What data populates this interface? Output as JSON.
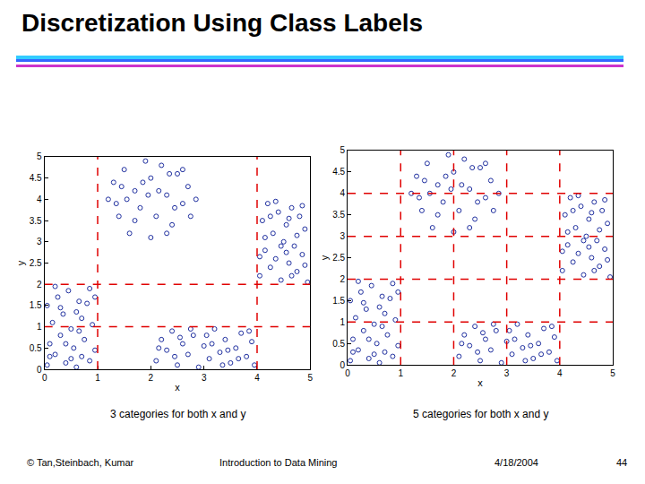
{
  "slide": {
    "title": "Discretization Using Class Labels",
    "footer": [
      "© Tan,Steinbach, Kumar",
      "Introduction to Data Mining",
      "4/18/2004",
      "44"
    ]
  },
  "chart_data": [
    {
      "type": "scatter",
      "title": "3 categories for both x and y",
      "x_label": "x",
      "y_label": "y",
      "xlim": [
        0,
        5
      ],
      "ylim": [
        0,
        5
      ],
      "xticks": [
        0,
        1,
        2,
        3,
        4,
        5
      ],
      "yticks": [
        0,
        0.5,
        1,
        1.5,
        2,
        2.5,
        3,
        3.5,
        4,
        4.5,
        5
      ],
      "marker": "circle-open",
      "color": "#1f2f9f",
      "x_cuts": [
        1,
        4
      ],
      "y_cuts": [
        1,
        2
      ],
      "x": [
        0.05,
        0.2,
        0.4,
        0.6,
        0.85,
        0.1,
        0.3,
        0.55,
        0.75,
        0.95,
        0.15,
        0.35,
        0.5,
        0.7,
        0.9,
        0.05,
        0.25,
        0.45,
        0.65,
        0.85,
        0.2,
        0.6,
        0.8,
        0.1,
        0.4,
        0.7,
        0.3,
        0.95,
        0.5,
        0.65,
        1.2,
        1.3,
        1.4,
        1.5,
        1.6,
        1.7,
        1.8,
        1.9,
        2.0,
        2.0,
        2.1,
        2.2,
        2.3,
        2.4,
        2.5,
        2.6,
        2.7,
        2.75,
        1.55,
        1.85,
        2.15,
        2.45,
        1.35,
        2.6,
        1.7,
        2.3,
        1.95,
        2.85,
        1.45,
        2.35,
        2.1,
        2.2,
        2.3,
        2.4,
        2.5,
        2.6,
        2.7,
        2.8,
        2.9,
        3.0,
        3.1,
        3.2,
        3.3,
        3.4,
        3.5,
        3.6,
        3.7,
        3.8,
        3.9,
        2.15,
        2.45,
        2.75,
        3.05,
        3.35,
        3.65,
        3.85,
        2.55,
        3.15,
        3.45,
        3.95,
        4.05,
        4.1,
        4.15,
        4.2,
        4.25,
        4.3,
        4.35,
        4.4,
        4.45,
        4.5,
        4.55,
        4.6,
        4.65,
        4.7,
        4.75,
        4.8,
        4.85,
        4.9,
        4.95,
        4.15,
        4.35,
        4.55,
        4.75,
        4.9,
        4.25,
        4.45,
        4.65,
        4.85,
        4.05,
        4.6
      ],
      "y": [
        0.1,
        0.35,
        0.15,
        0.05,
        0.2,
        0.6,
        0.8,
        0.5,
        0.7,
        0.45,
        1.1,
        1.3,
        0.95,
        1.2,
        1.05,
        1.5,
        1.7,
        1.85,
        1.6,
        1.9,
        1.95,
        1.35,
        1.55,
        0.3,
        0.6,
        0.3,
        1.45,
        1.7,
        0.25,
        0.9,
        4.0,
        4.4,
        3.6,
        4.7,
        3.2,
        4.2,
        3.8,
        4.9,
        3.1,
        4.5,
        3.6,
        4.8,
        4.1,
        3.4,
        4.6,
        3.9,
        4.3,
        3.6,
        4.0,
        4.4,
        4.2,
        3.8,
        3.9,
        4.7,
        3.5,
        3.2,
        4.1,
        4.0,
        4.3,
        4.6,
        0.2,
        0.7,
        0.45,
        0.9,
        0.1,
        0.6,
        0.35,
        0.8,
        0.05,
        0.55,
        0.25,
        0.95,
        0.4,
        0.7,
        0.15,
        0.5,
        0.85,
        0.3,
        0.65,
        0.5,
        0.3,
        0.95,
        0.8,
        0.1,
        0.25,
        0.9,
        0.75,
        0.6,
        0.45,
        0.1,
        2.2,
        3.5,
        2.8,
        3.9,
        2.4,
        3.2,
        2.6,
        3.7,
        2.1,
        3.0,
        3.4,
        2.5,
        3.8,
        2.9,
        2.3,
        3.6,
        2.7,
        3.3,
        2.05,
        3.1,
        3.95,
        2.75,
        3.15,
        2.45,
        3.6,
        2.9,
        2.2,
        3.85,
        2.65,
        3.55
      ]
    },
    {
      "type": "scatter",
      "title": "5 categories for both x and y",
      "x_label": "x",
      "y_label": "y",
      "xlim": [
        0,
        5
      ],
      "ylim": [
        0,
        5
      ],
      "xticks": [
        0,
        1,
        2,
        3,
        4,
        5
      ],
      "yticks": [
        0,
        0.5,
        1,
        1.5,
        2,
        2.5,
        3,
        3.5,
        4,
        4.5,
        5
      ],
      "marker": "circle-open",
      "color": "#1f2f9f",
      "x_cuts": [
        1,
        2,
        3,
        4
      ],
      "y_cuts": [
        1,
        2,
        3,
        4
      ],
      "x": [
        0.05,
        0.2,
        0.4,
        0.6,
        0.85,
        0.1,
        0.3,
        0.55,
        0.75,
        0.95,
        0.15,
        0.35,
        0.5,
        0.7,
        0.9,
        0.05,
        0.25,
        0.45,
        0.65,
        0.85,
        0.2,
        0.6,
        0.8,
        0.1,
        0.4,
        0.7,
        0.3,
        0.95,
        0.5,
        0.65,
        1.2,
        1.3,
        1.4,
        1.5,
        1.6,
        1.7,
        1.8,
        1.9,
        2.0,
        2.0,
        2.1,
        2.2,
        2.3,
        2.4,
        2.5,
        2.6,
        2.7,
        2.75,
        1.55,
        1.85,
        2.15,
        2.45,
        1.35,
        2.6,
        1.7,
        2.3,
        1.95,
        2.85,
        1.45,
        2.35,
        2.1,
        2.2,
        2.3,
        2.4,
        2.5,
        2.6,
        2.7,
        2.8,
        2.9,
        3.0,
        3.1,
        3.2,
        3.3,
        3.4,
        3.5,
        3.6,
        3.7,
        3.8,
        3.9,
        2.15,
        2.45,
        2.75,
        3.05,
        3.35,
        3.65,
        3.85,
        2.55,
        3.15,
        3.45,
        3.95,
        4.05,
        4.1,
        4.15,
        4.2,
        4.25,
        4.3,
        4.35,
        4.4,
        4.45,
        4.5,
        4.55,
        4.6,
        4.65,
        4.7,
        4.75,
        4.8,
        4.85,
        4.9,
        4.95,
        4.15,
        4.35,
        4.55,
        4.75,
        4.9,
        4.25,
        4.45,
        4.65,
        4.85,
        4.05,
        4.6
      ],
      "y": [
        0.1,
        0.35,
        0.15,
        0.05,
        0.2,
        0.6,
        0.8,
        0.5,
        0.7,
        0.45,
        1.1,
        1.3,
        0.95,
        1.2,
        1.05,
        1.5,
        1.7,
        1.85,
        1.6,
        1.9,
        1.95,
        1.35,
        1.55,
        0.3,
        0.6,
        0.3,
        1.45,
        1.7,
        0.25,
        0.9,
        4.0,
        4.4,
        3.6,
        4.7,
        3.2,
        4.2,
        3.8,
        4.9,
        3.1,
        4.5,
        3.6,
        4.8,
        4.1,
        3.4,
        4.6,
        3.9,
        4.3,
        3.6,
        4.0,
        4.4,
        4.2,
        3.8,
        3.9,
        4.7,
        3.5,
        3.2,
        4.1,
        4.0,
        4.3,
        4.6,
        0.2,
        0.7,
        0.45,
        0.9,
        0.1,
        0.6,
        0.35,
        0.8,
        0.05,
        0.55,
        0.25,
        0.95,
        0.4,
        0.7,
        0.15,
        0.5,
        0.85,
        0.3,
        0.65,
        0.5,
        0.3,
        0.95,
        0.8,
        0.1,
        0.25,
        0.9,
        0.75,
        0.6,
        0.45,
        0.1,
        2.2,
        3.5,
        2.8,
        3.9,
        2.4,
        3.2,
        2.6,
        3.7,
        2.1,
        3.0,
        3.4,
        2.5,
        3.8,
        2.9,
        2.3,
        3.6,
        2.7,
        3.3,
        2.05,
        3.1,
        3.95,
        2.75,
        3.15,
        2.45,
        3.6,
        2.9,
        2.2,
        3.85,
        2.65,
        3.55
      ]
    }
  ]
}
